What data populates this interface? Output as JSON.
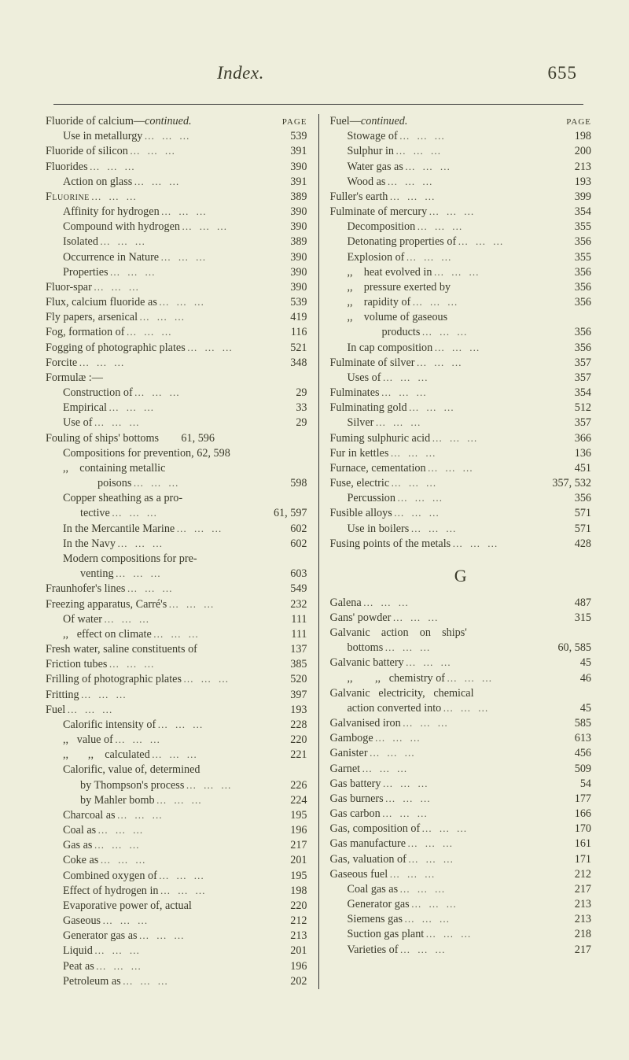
{
  "header": {
    "title": "Index.",
    "pagenum": "655"
  },
  "leftColHead": "PAGE",
  "rightColHead": "PAGE",
  "sectionLetter": "G",
  "left": [
    {
      "label": "Fluoride of calcium—",
      "suffix_it": "continued.",
      "num": "",
      "indent": 0,
      "noleader": true,
      "headnum": true
    },
    {
      "label": "Use in metallurgy",
      "num": "539",
      "indent": 1
    },
    {
      "label": "Fluoride of silicon",
      "num": "391",
      "indent": 0
    },
    {
      "label": "Fluorides",
      "num": "390",
      "indent": 0
    },
    {
      "label": "Action on glass",
      "num": "391",
      "indent": 1
    },
    {
      "label_sc": "Fluorine",
      "num": "389",
      "indent": 0
    },
    {
      "label": "Affinity for hydrogen",
      "num": "390",
      "indent": 1
    },
    {
      "label": "Compound with hydrogen",
      "num": "390",
      "indent": 1
    },
    {
      "label": "Isolated",
      "num": "389",
      "indent": 1
    },
    {
      "label": "Occurrence in Nature",
      "num": "390",
      "indent": 1
    },
    {
      "label": "Properties",
      "num": "390",
      "indent": 1
    },
    {
      "label": "Fluor-spar",
      "num": "390",
      "indent": 0
    },
    {
      "label": "Flux, calcium fluoride as",
      "num": "539",
      "indent": 0
    },
    {
      "label": "Fly papers, arsenical",
      "num": "419",
      "indent": 0
    },
    {
      "label": "Fog, formation of",
      "num": "116",
      "indent": 0
    },
    {
      "label": "Fogging of photographic plates",
      "num": "521",
      "indent": 0
    },
    {
      "label": "Forcite",
      "num": "348",
      "indent": 0
    },
    {
      "label": "Formulæ :—",
      "num": "",
      "indent": 0,
      "noleader": true
    },
    {
      "label": "Construction of",
      "num": "29",
      "indent": 1
    },
    {
      "label": "Empirical",
      "num": "33",
      "indent": 1
    },
    {
      "label": "Use of",
      "num": "29",
      "indent": 1
    },
    {
      "label": "Fouling of ships' bottoms        61, 596",
      "num": "",
      "indent": 0,
      "noleader": true
    },
    {
      "label": "Compositions for prevention, 62, 598",
      "num": "",
      "indent": 1,
      "noleader": true
    },
    {
      "label": ",,    containing metallic",
      "num": "",
      "indent": 1,
      "noleader": true
    },
    {
      "label": "poisons",
      "num": "598",
      "indent": 3
    },
    {
      "label": "Copper sheathing as a pro-",
      "num": "",
      "indent": 1,
      "noleader": true
    },
    {
      "label": "tective",
      "num": "61, 597",
      "indent": 2
    },
    {
      "label": "In the Mercantile Marine",
      "num": "602",
      "indent": 1
    },
    {
      "label": "In the Navy",
      "num": "602",
      "indent": 1
    },
    {
      "label": "Modern compositions for pre-",
      "num": "",
      "indent": 1,
      "noleader": true
    },
    {
      "label": "venting",
      "num": "603",
      "indent": 2
    },
    {
      "label": "Fraunhofer's lines",
      "num": "549",
      "indent": 0
    },
    {
      "label": "Freezing apparatus, Carré's",
      "num": "232",
      "indent": 0
    },
    {
      "label": "Of water",
      "num": "111",
      "indent": 1
    },
    {
      "label": ",,   effect on climate",
      "num": "111",
      "indent": 1
    },
    {
      "label": "Fresh water, saline constituents of",
      "num": "137",
      "indent": 0,
      "tight": true
    },
    {
      "label": "Friction tubes",
      "num": "385",
      "indent": 0
    },
    {
      "label": "Frilling of photographic plates",
      "num": "520",
      "indent": 0
    },
    {
      "label": "Fritting",
      "num": "397",
      "indent": 0
    },
    {
      "label": "Fuel",
      "num": "193",
      "indent": 0
    },
    {
      "label": "Calorific intensity of",
      "num": "228",
      "indent": 1
    },
    {
      "label": ",,   value of",
      "num": "220",
      "indent": 1
    },
    {
      "label": ",,       ,,    calculated",
      "num": "221",
      "indent": 1
    },
    {
      "label": "Calorific, value of, determined",
      "num": "",
      "indent": 1,
      "noleader": true
    },
    {
      "label": "by Thompson's process",
      "num": "226",
      "indent": 2
    },
    {
      "label": "by Mahler bomb",
      "num": "224",
      "indent": 2
    },
    {
      "label": "Charcoal as",
      "num": "195",
      "indent": 1
    },
    {
      "label": "Coal as",
      "num": "196",
      "indent": 1
    },
    {
      "label": "Gas as",
      "num": "217",
      "indent": 1
    },
    {
      "label": "Coke as",
      "num": "201",
      "indent": 1
    },
    {
      "label": "Combined oxygen of",
      "num": "195",
      "indent": 1
    },
    {
      "label": "Effect of hydrogen in",
      "num": "198",
      "indent": 1
    },
    {
      "label": "Evaporative power of, actual",
      "num": "220",
      "indent": 1,
      "tight": true
    },
    {
      "label": "Gaseous",
      "num": "212",
      "indent": 1
    },
    {
      "label": "Generator gas as",
      "num": "213",
      "indent": 1
    },
    {
      "label": "Liquid",
      "num": "201",
      "indent": 1
    },
    {
      "label": "Peat as",
      "num": "196",
      "indent": 1
    },
    {
      "label": "Petroleum as",
      "num": "202",
      "indent": 1
    }
  ],
  "rightTop": [
    {
      "label": "Fuel—",
      "suffix_it": "continued.",
      "num": "",
      "indent": 0,
      "noleader": true,
      "headnum": true
    },
    {
      "label": "Stowage of",
      "num": "198",
      "indent": 1
    },
    {
      "label": "Sulphur in",
      "num": "200",
      "indent": 1
    },
    {
      "label": "Water gas as",
      "num": "213",
      "indent": 1
    },
    {
      "label": "Wood as",
      "num": "193",
      "indent": 1
    },
    {
      "label": "Fuller's earth",
      "num": "399",
      "indent": 0
    },
    {
      "label": "Fulminate of mercury",
      "num": "354",
      "indent": 0
    },
    {
      "label": "Decomposition",
      "num": "355",
      "indent": 1
    },
    {
      "label": "Detonating properties of",
      "num": "356",
      "indent": 1
    },
    {
      "label": "Explosion of",
      "num": "355",
      "indent": 1
    },
    {
      "label": ",,    heat evolved in",
      "num": "356",
      "indent": 1
    },
    {
      "label": ",,    pressure exerted by",
      "num": "356",
      "indent": 1,
      "tight": true
    },
    {
      "label": ",,    rapidity of",
      "num": "356",
      "indent": 1
    },
    {
      "label": ",,    volume of gaseous",
      "num": "",
      "indent": 1,
      "noleader": true
    },
    {
      "label": "products",
      "num": "356",
      "indent": 3
    },
    {
      "label": "In cap composition",
      "num": "356",
      "indent": 1
    },
    {
      "label": "Fulminate of silver",
      "num": "357",
      "indent": 0
    },
    {
      "label": "Uses of",
      "num": "357",
      "indent": 1
    },
    {
      "label": "Fulminates",
      "num": "354",
      "indent": 0
    },
    {
      "label": "Fulminating gold",
      "num": "512",
      "indent": 0
    },
    {
      "label": "Silver",
      "num": "357",
      "indent": 1
    },
    {
      "label": "Fuming sulphuric acid",
      "num": "366",
      "indent": 0
    },
    {
      "label": "Fur in kettles",
      "num": "136",
      "indent": 0
    },
    {
      "label": "Furnace, cementation",
      "num": "451",
      "indent": 0
    },
    {
      "label": "Fuse, electric",
      "num": "357, 532",
      "indent": 0
    },
    {
      "label": "Percussion",
      "num": "356",
      "indent": 1
    },
    {
      "label": "Fusible alloys",
      "num": "571",
      "indent": 0
    },
    {
      "label": "Use in boilers",
      "num": "571",
      "indent": 1
    },
    {
      "label": "Fusing points of the metals",
      "num": "428",
      "indent": 0
    }
  ],
  "rightBottom": [
    {
      "label": "Galena",
      "num": "487",
      "indent": 0
    },
    {
      "label": "Gans' powder",
      "num": "315",
      "indent": 0
    },
    {
      "label": "Galvanic    action    on    ships'",
      "num": "",
      "indent": 0,
      "noleader": true
    },
    {
      "label": "bottoms",
      "num": "60, 585",
      "indent": 1
    },
    {
      "label": "Galvanic battery",
      "num": "45",
      "indent": 0
    },
    {
      "label": ",,        ,,   chemistry of",
      "num": "46",
      "indent": 1
    },
    {
      "label": "Galvanic   electricity,   chemical",
      "num": "",
      "indent": 0,
      "noleader": true
    },
    {
      "label": "action converted into",
      "num": "45",
      "indent": 1
    },
    {
      "label": "Galvanised iron",
      "num": "585",
      "indent": 0
    },
    {
      "label": "Gamboge",
      "num": "613",
      "indent": 0
    },
    {
      "label": "Ganister",
      "num": "456",
      "indent": 0
    },
    {
      "label": "Garnet",
      "num": "509",
      "indent": 0
    },
    {
      "label": "Gas battery",
      "num": "54",
      "indent": 0
    },
    {
      "label": "Gas burners",
      "num": "177",
      "indent": 0
    },
    {
      "label": "Gas carbon",
      "num": "166",
      "indent": 0
    },
    {
      "label": "Gas, composition of",
      "num": "170",
      "indent": 0
    },
    {
      "label": "Gas manufacture",
      "num": "161",
      "indent": 0
    },
    {
      "label": "Gas, valuation of",
      "num": "171",
      "indent": 0
    },
    {
      "label": "Gaseous fuel",
      "num": "212",
      "indent": 0
    },
    {
      "label": "Coal gas as",
      "num": "217",
      "indent": 1
    },
    {
      "label": "Generator gas",
      "num": "213",
      "indent": 1
    },
    {
      "label": "Siemens gas",
      "num": "213",
      "indent": 1
    },
    {
      "label": "Suction gas plant",
      "num": "218",
      "indent": 1
    },
    {
      "label": "Varieties of",
      "num": "217",
      "indent": 1
    }
  ]
}
